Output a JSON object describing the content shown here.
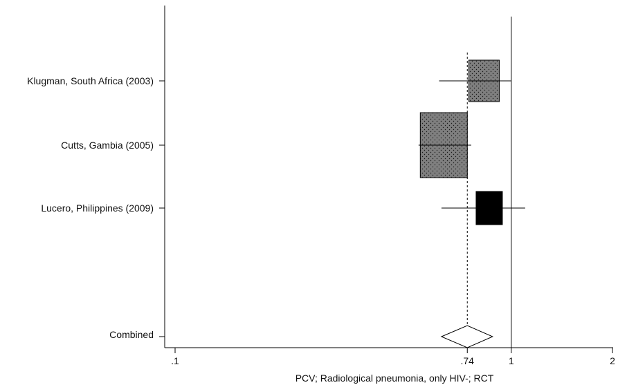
{
  "chart_data": {
    "type": "forest",
    "xlabel": "PCV; Radiological pneumonia, only HIV-; RCT",
    "x_scale": "log",
    "xlim": [
      0.1,
      2
    ],
    "xticks": [
      {
        "value": 0.1,
        "label": ".1"
      },
      {
        "value": 0.74,
        "label": ".74"
      },
      {
        "value": 1,
        "label": "1"
      },
      {
        "value": 2,
        "label": "2"
      }
    ],
    "null_line": 1,
    "pooled_line": 0.74,
    "studies": [
      {
        "label": "Klugman, South Africa (2003)",
        "estimate": 0.83,
        "ci_low": 0.61,
        "ci_high": 1.0,
        "box_fill": "#7f7f7f",
        "dotted": true
      },
      {
        "label": "Cutts, Gambia (2005)",
        "estimate": 0.63,
        "ci_low": 0.53,
        "ci_high": 0.76,
        "box_fill": "#7f7f7f",
        "dotted": true
      },
      {
        "label": "Lucero, Philippines (2009)",
        "estimate": 0.86,
        "ci_low": 0.62,
        "ci_high": 1.1,
        "box_fill": "#000000",
        "dotted": false
      }
    ],
    "combined": {
      "label": "Combined",
      "estimate": 0.74,
      "ci_low": 0.62,
      "ci_high": 0.88
    },
    "colors": {
      "axis": "#000000",
      "box_gray": "#7f7f7f",
      "box_black": "#000000",
      "diamond_fill": "#ffffff"
    }
  }
}
